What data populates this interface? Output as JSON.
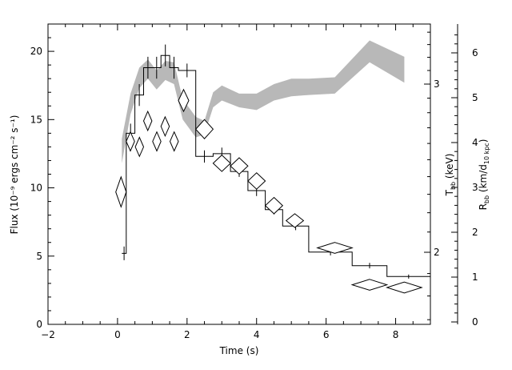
{
  "chart_data": {
    "type": "line",
    "title": "",
    "xlabel": "Time (s)",
    "ylabel_left": "Flux (10⁻⁹ ergs cm⁻² s⁻¹)",
    "ylabel_right_1": {
      "main": "T",
      "sub": "bb",
      "unit": " (keV)"
    },
    "ylabel_right_2": {
      "main": "R",
      "sub": "bb",
      "unit": " (km/d",
      "unit_sub": "10 kpc",
      "unit_end": ")"
    },
    "xlim": [
      -2,
      9
    ],
    "ylim": [
      0,
      22
    ],
    "x_ticks": [
      -2,
      0,
      2,
      4,
      6,
      8
    ],
    "y_ticks": [
      0,
      5,
      10,
      15,
      20
    ],
    "temperature_axis": {
      "ticks": [
        2,
        3
      ],
      "scale": "log"
    },
    "radius_axis": {
      "ticks": [
        0,
        1,
        2,
        3,
        4,
        5,
        6
      ]
    },
    "grid": false,
    "series": [
      {
        "kind": "step",
        "color": "#000000",
        "bins": [
          {
            "x0": 0.125,
            "x1": 0.25,
            "y": 5.2,
            "yerr": 0.5
          },
          {
            "x0": 0.25,
            "x1": 0.5,
            "y": 14.0,
            "yerr": 0.7
          },
          {
            "x0": 0.5,
            "x1": 0.75,
            "y": 16.8,
            "yerr": 0.8
          },
          {
            "x0": 0.75,
            "x1": 1.0,
            "y": 18.8,
            "yerr": 0.8
          },
          {
            "x0": 1.0,
            "x1": 1.25,
            "y": 18.8,
            "yerr": 0.8
          },
          {
            "x0": 1.25,
            "x1": 1.5,
            "y": 19.7,
            "yerr": 0.8
          },
          {
            "x0": 1.5,
            "x1": 1.75,
            "y": 18.8,
            "yerr": 0.8
          },
          {
            "x0": 1.75,
            "x1": 2.25,
            "y": 18.6,
            "yerr": 0.5
          },
          {
            "x0": 2.25,
            "x1": 2.75,
            "y": 12.3,
            "yerr": 0.45
          },
          {
            "x0": 2.75,
            "x1": 3.25,
            "y": 12.5,
            "yerr": 0.45
          },
          {
            "x0": 3.25,
            "x1": 3.75,
            "y": 11.2,
            "yerr": 0.4
          },
          {
            "x0": 3.75,
            "x1": 4.25,
            "y": 9.8,
            "yerr": 0.4
          },
          {
            "x0": 4.25,
            "x1": 4.75,
            "y": 8.4,
            "yerr": 0.35
          },
          {
            "x0": 4.75,
            "x1": 5.5,
            "y": 7.2,
            "yerr": 0.3
          },
          {
            "x0": 5.5,
            "x1": 6.75,
            "y": 5.3,
            "yerr": 0.25
          },
          {
            "x0": 6.75,
            "x1": 7.75,
            "y": 4.3,
            "yerr": 0.2
          },
          {
            "x0": 7.75,
            "x1": 9.0,
            "y": 3.5,
            "yerr": 0.15
          }
        ]
      },
      {
        "kind": "diamonds",
        "color": "#000000",
        "points": [
          {
            "x": 0.1,
            "y": 9.7,
            "dx": 0.15,
            "dy": 1.1
          },
          {
            "x": 0.37,
            "y": 13.4,
            "dx": 0.12,
            "dy": 0.7
          },
          {
            "x": 0.63,
            "y": 13.0,
            "dx": 0.12,
            "dy": 0.7
          },
          {
            "x": 0.87,
            "y": 14.9,
            "dx": 0.12,
            "dy": 0.7
          },
          {
            "x": 1.13,
            "y": 13.4,
            "dx": 0.12,
            "dy": 0.7
          },
          {
            "x": 1.37,
            "y": 14.5,
            "dx": 0.12,
            "dy": 0.7
          },
          {
            "x": 1.63,
            "y": 13.4,
            "dx": 0.12,
            "dy": 0.7
          },
          {
            "x": 1.9,
            "y": 16.4,
            "dx": 0.15,
            "dy": 0.8
          },
          {
            "x": 2.5,
            "y": 14.3,
            "dx": 0.25,
            "dy": 0.7
          },
          {
            "x": 3.0,
            "y": 11.8,
            "dx": 0.25,
            "dy": 0.6
          },
          {
            "x": 3.5,
            "y": 11.6,
            "dx": 0.25,
            "dy": 0.6
          },
          {
            "x": 4.0,
            "y": 10.5,
            "dx": 0.25,
            "dy": 0.6
          },
          {
            "x": 4.5,
            "y": 8.7,
            "dx": 0.25,
            "dy": 0.6
          },
          {
            "x": 5.1,
            "y": 7.6,
            "dx": 0.25,
            "dy": 0.5
          },
          {
            "x": 6.25,
            "y": 5.6,
            "dx": 0.5,
            "dy": 0.4
          },
          {
            "x": 7.25,
            "y": 2.9,
            "dx": 0.5,
            "dy": 0.4
          },
          {
            "x": 8.25,
            "y": 2.7,
            "dx": 0.5,
            "dy": 0.4
          }
        ]
      },
      {
        "kind": "band",
        "color": "#b8b8b8",
        "upper": [
          [
            0.125,
            13.6
          ],
          [
            0.375,
            16.9
          ],
          [
            0.625,
            18.8
          ],
          [
            0.875,
            19.4
          ],
          [
            1.125,
            18.6
          ],
          [
            1.375,
            19.3
          ],
          [
            1.625,
            19.2
          ],
          [
            1.875,
            16.5
          ],
          [
            2.25,
            15.2
          ],
          [
            2.5,
            14.9
          ],
          [
            2.75,
            17.0
          ],
          [
            3.0,
            17.5
          ],
          [
            3.5,
            16.9
          ],
          [
            4.0,
            16.9
          ],
          [
            4.5,
            17.6
          ],
          [
            5.0,
            18.0
          ],
          [
            5.5,
            18.0
          ],
          [
            6.25,
            18.1
          ],
          [
            7.25,
            20.8
          ],
          [
            8.25,
            19.6
          ]
        ],
        "lower": [
          [
            0.125,
            11.8
          ],
          [
            0.375,
            15.4
          ],
          [
            0.625,
            17.3
          ],
          [
            0.875,
            18.0
          ],
          [
            1.125,
            17.2
          ],
          [
            1.375,
            17.9
          ],
          [
            1.625,
            17.6
          ],
          [
            1.875,
            15.0
          ],
          [
            2.25,
            13.7
          ],
          [
            2.5,
            13.9
          ],
          [
            2.75,
            15.9
          ],
          [
            3.0,
            16.4
          ],
          [
            3.5,
            15.9
          ],
          [
            4.0,
            15.7
          ],
          [
            4.5,
            16.4
          ],
          [
            5.0,
            16.7
          ],
          [
            5.5,
            16.8
          ],
          [
            6.25,
            16.9
          ],
          [
            7.25,
            19.2
          ],
          [
            8.25,
            17.7
          ]
        ]
      }
    ]
  }
}
